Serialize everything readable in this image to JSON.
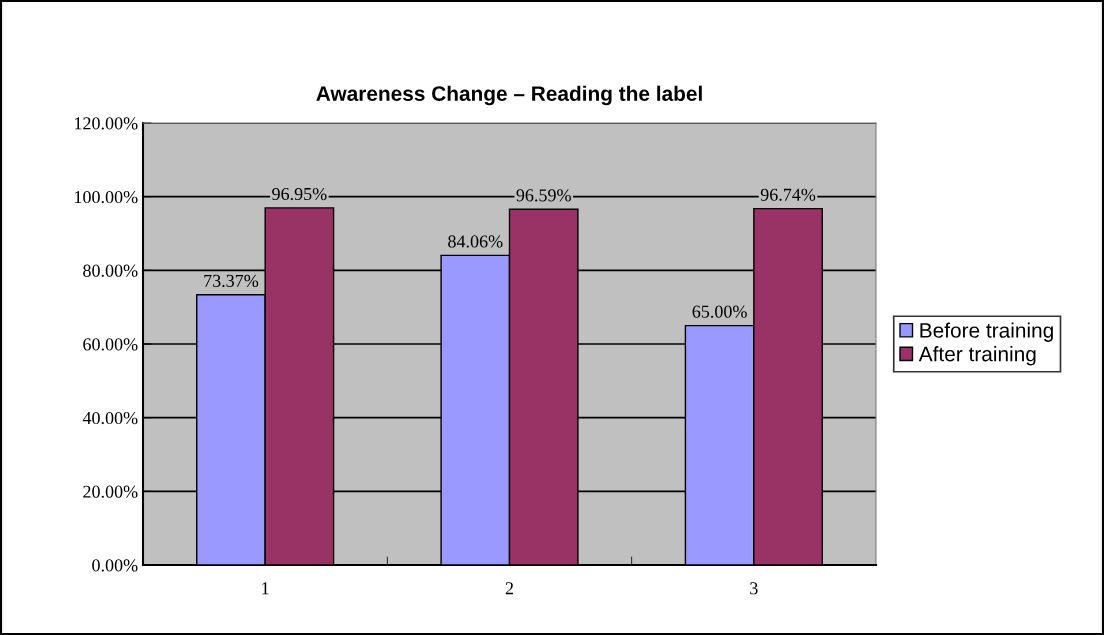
{
  "chart_data": {
    "type": "bar",
    "title": "Awareness Change – Reading the label",
    "categories": [
      "1",
      "2",
      "3"
    ],
    "series": [
      {
        "name": "Before training",
        "color": "#9999ff",
        "values": [
          73.37,
          84.06,
          65.0
        ],
        "value_labels": [
          "73.37%",
          "84.06%",
          "65.00%"
        ]
      },
      {
        "name": "After training",
        "color": "#993366",
        "values": [
          96.95,
          96.59,
          96.74
        ],
        "value_labels": [
          "96.95%",
          "96.59%",
          "96.74%"
        ]
      }
    ],
    "ylim": [
      0,
      120
    ],
    "yticks": [
      {
        "value": 0,
        "label": "0.00%"
      },
      {
        "value": 20,
        "label": "20.00%"
      },
      {
        "value": 40,
        "label": "40.00%"
      },
      {
        "value": 60,
        "label": "60.00%"
      },
      {
        "value": 80,
        "label": "80.00%"
      },
      {
        "value": 100,
        "label": "100.00%"
      },
      {
        "value": 120,
        "label": "120.00%"
      }
    ],
    "grid": "y",
    "legend": "right"
  }
}
